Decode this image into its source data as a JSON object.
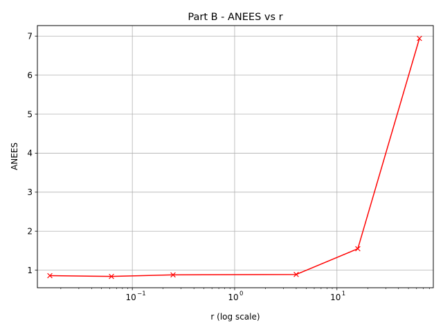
{
  "chart_data": {
    "type": "line",
    "title": "Part B - ANEES vs r",
    "xlabel": "r (log scale)",
    "ylabel": "ANEES",
    "xscale": "log",
    "xlim": [
      0.0118,
      87.5
    ],
    "ylim": [
      0.55,
      7.27
    ],
    "grid": true,
    "x_ticks": [
      {
        "value": 0.1,
        "base": "10",
        "exp": "−1"
      },
      {
        "value": 1,
        "base": "10",
        "exp": "0"
      },
      {
        "value": 10,
        "base": "10",
        "exp": "1"
      }
    ],
    "y_ticks": [
      1,
      2,
      3,
      4,
      5,
      6,
      7
    ],
    "series": [
      {
        "color": "#ff0000",
        "marker": "x",
        "x": [
          0.015625,
          0.0625,
          0.25,
          4,
          16,
          64
        ],
        "y": [
          0.86,
          0.84,
          0.88,
          0.89,
          1.55,
          6.94
        ]
      }
    ]
  }
}
